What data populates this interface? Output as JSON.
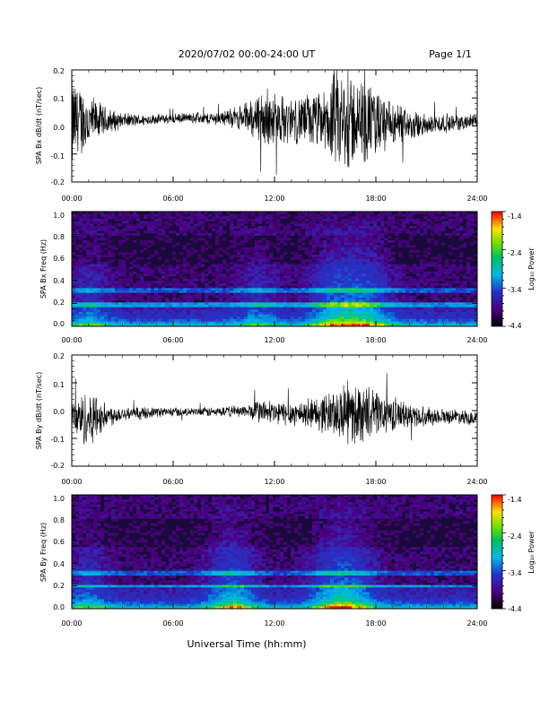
{
  "header": {
    "title": "2020/07/02  00:00-24:00 UT",
    "page": "Page 1/1"
  },
  "xlabel": "Universal Time (hh:mm)",
  "x_ticks": [
    "00:00",
    "06:00",
    "12:00",
    "18:00",
    "24:00"
  ],
  "colors": {
    "line": "#000000",
    "spectrogram_background": "#1a0a3c"
  },
  "chart_data": [
    {
      "type": "line",
      "panel": "Bx time series",
      "ylabel": "SPA Bx dB/dt (nT/sec)",
      "y_ticks": [
        "0.2",
        "0.1",
        "0.0",
        "-0.1",
        "-0.2"
      ],
      "ylim": [
        -0.2,
        0.2
      ],
      "xlim_hours": [
        0,
        24
      ],
      "envelope": {
        "hours": [
          0,
          0.5,
          1,
          1.5,
          2,
          3,
          4,
          5,
          6,
          7,
          8,
          9,
          10,
          10.5,
          11,
          11.5,
          12,
          13,
          14,
          15,
          15.5,
          16,
          16.5,
          17,
          18,
          19,
          20,
          21,
          22,
          23,
          24
        ],
        "baseline": [
          0.0,
          0.02,
          0.01,
          0.02,
          0.015,
          0.02,
          0.02,
          0.025,
          0.025,
          0.03,
          0.025,
          0.03,
          0.03,
          0.03,
          0.03,
          0.03,
          0.02,
          0.02,
          0.02,
          0.015,
          0.02,
          0.01,
          0.01,
          0.015,
          0.01,
          0.0,
          0.0,
          0.0,
          0.01,
          0.01,
          0.02
        ],
        "amplitude": [
          0.2,
          0.15,
          0.12,
          0.08,
          0.06,
          0.03,
          0.025,
          0.02,
          0.02,
          0.02,
          0.025,
          0.03,
          0.05,
          0.07,
          0.1,
          0.12,
          0.11,
          0.09,
          0.11,
          0.12,
          0.2,
          0.22,
          0.2,
          0.17,
          0.15,
          0.09,
          0.06,
          0.05,
          0.04,
          0.03,
          0.03
        ]
      }
    },
    {
      "type": "heatmap",
      "panel": "Bx spectrogram",
      "ylabel": "SPA Bx Freq (Hz)",
      "y_ticks": [
        "1.0",
        "0.8",
        "0.6",
        "0.4",
        "0.2",
        "0.0"
      ],
      "ylim": [
        0.0,
        1.0
      ],
      "xlim_hours": [
        0,
        24
      ],
      "colorbar": {
        "label": "Log₁₀ Power",
        "ticks": [
          "-1.4",
          "-2.4",
          "-3.4",
          "-4.4"
        ],
        "range": [
          -4.4,
          -1.4
        ]
      },
      "line_freqs_hz": [
        0.3,
        0.32,
        0.2,
        0.18
      ],
      "activity_peaks_hours": [
        1,
        11,
        15,
        16,
        17,
        18
      ]
    },
    {
      "type": "line",
      "panel": "By time series",
      "ylabel": "SPA By dB/dt (nT/sec)",
      "y_ticks": [
        "0.2",
        "0.1",
        "0.0",
        "-0.1",
        "-0.2"
      ],
      "ylim": [
        -0.2,
        0.2
      ],
      "xlim_hours": [
        0,
        24
      ],
      "envelope": {
        "hours": [
          0,
          0.5,
          1,
          1.5,
          2,
          3,
          4,
          5,
          6,
          7,
          8,
          9,
          10,
          10.5,
          11,
          11.5,
          12,
          13,
          14,
          15,
          15.5,
          16,
          16.5,
          17,
          18,
          19,
          20,
          21,
          22,
          23,
          24
        ],
        "baseline": [
          -0.02,
          -0.03,
          -0.03,
          -0.02,
          -0.02,
          -0.01,
          -0.01,
          -0.005,
          -0.005,
          -0.005,
          -0.005,
          -0.005,
          0.0,
          -0.005,
          0.0,
          -0.005,
          -0.01,
          -0.01,
          -0.01,
          -0.01,
          -0.01,
          -0.01,
          -0.01,
          -0.01,
          -0.01,
          -0.01,
          -0.02,
          -0.02,
          -0.02,
          -0.02,
          -0.03
        ],
        "amplitude": [
          0.06,
          0.1,
          0.12,
          0.09,
          0.05,
          0.03,
          0.025,
          0.02,
          0.02,
          0.015,
          0.02,
          0.02,
          0.025,
          0.03,
          0.05,
          0.05,
          0.05,
          0.05,
          0.06,
          0.08,
          0.1,
          0.12,
          0.13,
          0.12,
          0.1,
          0.07,
          0.05,
          0.04,
          0.03,
          0.03,
          0.03
        ]
      }
    },
    {
      "type": "heatmap",
      "panel": "By spectrogram",
      "ylabel": "SPA By Freq (Hz)",
      "y_ticks": [
        "1.0",
        "0.8",
        "0.6",
        "0.4",
        "0.2",
        "0.0"
      ],
      "ylim": [
        0.0,
        1.0
      ],
      "xlim_hours": [
        0,
        24
      ],
      "colorbar": {
        "label": "Log₁₀ Power",
        "ticks": [
          "-1.4",
          "-2.4",
          "-3.4",
          "-4.4"
        ],
        "range": [
          -4.4,
          -1.4
        ]
      },
      "line_freqs_hz": [
        0.32,
        0.3,
        0.2
      ],
      "activity_peaks_hours": [
        1,
        9,
        10,
        15,
        16,
        17
      ]
    }
  ]
}
